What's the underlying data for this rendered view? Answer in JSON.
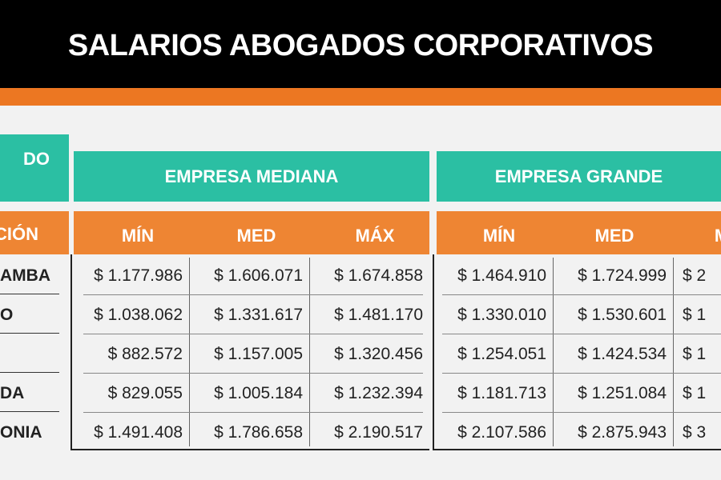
{
  "title": "SALARIOS ABOGADOS CORPORATIVOS",
  "left_header": "DO",
  "left_subheader": "CIÓN",
  "groups": [
    {
      "label": "EMPRESA MEDIANA",
      "columns": [
        "MÍN",
        "MED",
        "MÁX"
      ]
    },
    {
      "label": "EMPRESA GRANDE",
      "columns": [
        "MÍN",
        "MED",
        "M"
      ]
    }
  ],
  "rows": [
    {
      "label": "AMBA",
      "values": [
        "$ 1.177.986",
        "$ 1.606.071",
        "$ 1.674.858",
        "$ 1.464.910",
        "$ 1.724.999",
        "$ 2"
      ]
    },
    {
      "label": "O",
      "values": [
        "$ 1.038.062",
        "$ 1.331.617",
        "$ 1.481.170",
        "$ 1.330.010",
        "$ 1.530.601",
        "$ 1"
      ]
    },
    {
      "label": "",
      "values": [
        "$ 882.572",
        "$ 1.157.005",
        "$ 1.320.456",
        "$ 1.254.051",
        "$ 1.424.534",
        "$ 1"
      ]
    },
    {
      "label": "DA",
      "values": [
        "$ 829.055",
        "$ 1.005.184",
        "$ 1.232.394",
        "$ 1.181.713",
        "$ 1.251.084",
        "$ 1"
      ]
    },
    {
      "label": "ONIA",
      "values": [
        "$ 1.491.408",
        "$ 1.786.658",
        "$ 2.190.517",
        "$ 2.107.586",
        "$ 2.875.943",
        "$ 3"
      ]
    }
  ],
  "colors": {
    "header": "#000000",
    "orange": "#ec7722",
    "teal": "#2bbfa3"
  }
}
